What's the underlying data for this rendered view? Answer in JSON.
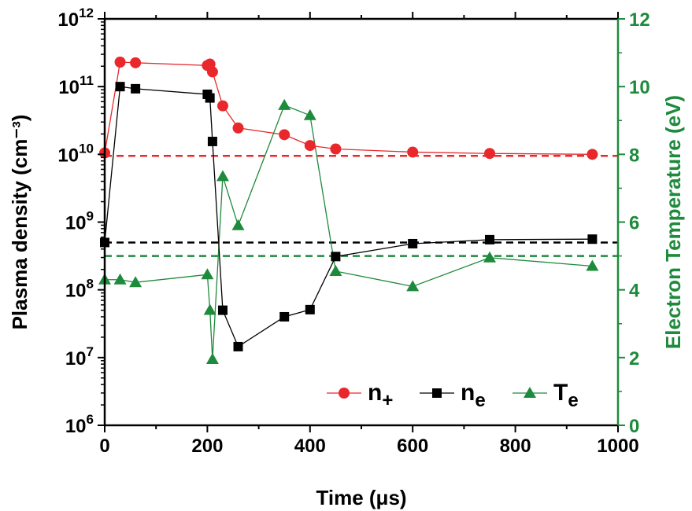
{
  "chart_data": {
    "type": "line",
    "xlabel": "Time (μs)",
    "x_axis": {
      "min": 0,
      "max": 1000,
      "ticks": [
        0,
        200,
        400,
        600,
        800,
        1000
      ],
      "tick_labels": [
        "0",
        "200",
        "400",
        "600",
        "800",
        "1000"
      ]
    },
    "y_left": {
      "label": "Plasma density (cm⁻³)",
      "scale": "log",
      "min": 1000000.0,
      "max": 1000000000000.0,
      "ticks": [
        {
          "value": 1000000.0,
          "base": "10",
          "exp": "6"
        },
        {
          "value": 10000000.0,
          "base": "10",
          "exp": "7"
        },
        {
          "value": 100000000.0,
          "base": "10",
          "exp": "8"
        },
        {
          "value": 1000000000.0,
          "base": "10",
          "exp": "9"
        },
        {
          "value": 10000000000.0,
          "base": "10",
          "exp": "10"
        },
        {
          "value": 100000000000.0,
          "base": "10",
          "exp": "11"
        },
        {
          "value": 1000000000000.0,
          "base": "10",
          "exp": "12"
        }
      ],
      "color": "#000000"
    },
    "y_right": {
      "label": "Electron Temperature (eV)",
      "scale": "linear",
      "min": 0,
      "max": 12,
      "ticks": [
        0,
        2,
        4,
        6,
        8,
        10,
        12
      ],
      "tick_labels": [
        "0",
        "2",
        "4",
        "6",
        "8",
        "10",
        "12"
      ],
      "color": "#1e8a3c"
    },
    "series": [
      {
        "name": "n+",
        "legend_base": "n",
        "legend_sub": "+",
        "axis": "left",
        "marker": "circle",
        "color": "#e8282b",
        "x": [
          0,
          30,
          60,
          200,
          205,
          210,
          230,
          260,
          350,
          400,
          450,
          600,
          750,
          950
        ],
        "y": [
          10500000000.0,
          230000000000.0,
          225000000000.0,
          205000000000.0,
          215000000000.0,
          165000000000.0,
          52000000000.0,
          24500000000.0,
          19500000000.0,
          13500000000.0,
          12000000000.0,
          10800000000.0,
          10300000000.0,
          10000000000.0
        ]
      },
      {
        "name": "ne",
        "legend_base": "n",
        "legend_sub": "e",
        "axis": "left",
        "marker": "square",
        "color": "#000000",
        "x": [
          0,
          30,
          60,
          200,
          205,
          210,
          230,
          260,
          350,
          400,
          450,
          600,
          750,
          950
        ],
        "y": [
          500000000.0,
          100000000000.0,
          93000000000.0,
          77000000000.0,
          68000000000.0,
          15500000000.0,
          50000000.0,
          14500000.0,
          40000000.0,
          51000000.0,
          310000000.0,
          480000000.0,
          550000000.0,
          560000000.0
        ]
      },
      {
        "name": "Te",
        "legend_base": "T",
        "legend_sub": "e",
        "axis": "right",
        "marker": "triangle",
        "color": "#1e8a3c",
        "x": [
          0,
          30,
          60,
          200,
          205,
          210,
          230,
          260,
          350,
          400,
          450,
          600,
          750,
          950
        ],
        "y": [
          4.3,
          4.3,
          4.22,
          4.45,
          3.4,
          1.95,
          7.35,
          5.9,
          9.45,
          9.15,
          4.55,
          4.1,
          4.95,
          4.7
        ]
      }
    ],
    "reference_lines": [
      {
        "axis": "left",
        "value": 9500000000.0,
        "color": "#e8282b",
        "style": "dashed"
      },
      {
        "axis": "left",
        "value": 500000000.0,
        "color": "#000000",
        "style": "dashed"
      },
      {
        "axis": "right",
        "value": 5.0,
        "color": "#1e8a3c",
        "style": "dashed"
      }
    ],
    "legend_position": "bottom-right"
  }
}
